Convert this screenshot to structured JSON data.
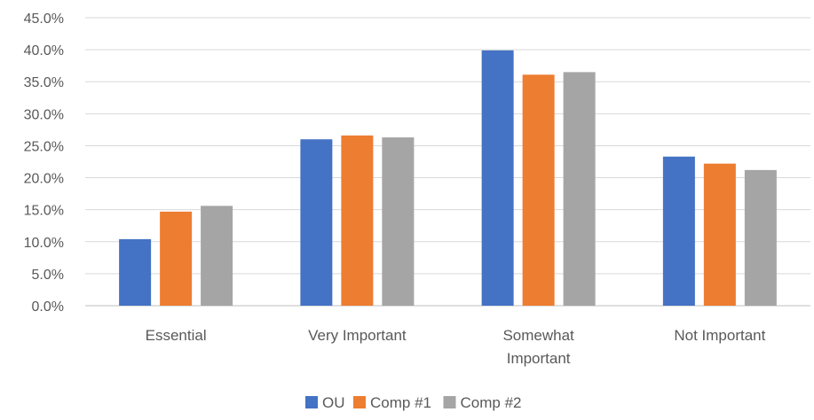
{
  "chart_data": {
    "type": "bar",
    "categories": [
      "Essential",
      "Very Important",
      "Somewhat Important",
      "Not Important"
    ],
    "category_lines": [
      [
        "Essential"
      ],
      [
        "Very Important"
      ],
      [
        "Somewhat",
        "Important"
      ],
      [
        "Not Important"
      ]
    ],
    "series": [
      {
        "name": "OU",
        "color": "#4472C4",
        "values": [
          10.4,
          26.0,
          39.9,
          23.3
        ]
      },
      {
        "name": "Comp #1",
        "color": "#ED7D31",
        "values": [
          14.7,
          26.6,
          36.1,
          22.2
        ]
      },
      {
        "name": "Comp #2",
        "color": "#A5A5A5",
        "values": [
          15.6,
          26.3,
          36.5,
          21.2
        ]
      }
    ],
    "yticks": [
      "0.0%",
      "5.0%",
      "10.0%",
      "15.0%",
      "20.0%",
      "25.0%",
      "30.0%",
      "35.0%",
      "40.0%",
      "45.0%"
    ],
    "ylim": [
      0,
      45
    ],
    "ytick_step": 5,
    "grid": true,
    "legend_position": "bottom",
    "title": "",
    "xlabel": "",
    "ylabel": ""
  }
}
